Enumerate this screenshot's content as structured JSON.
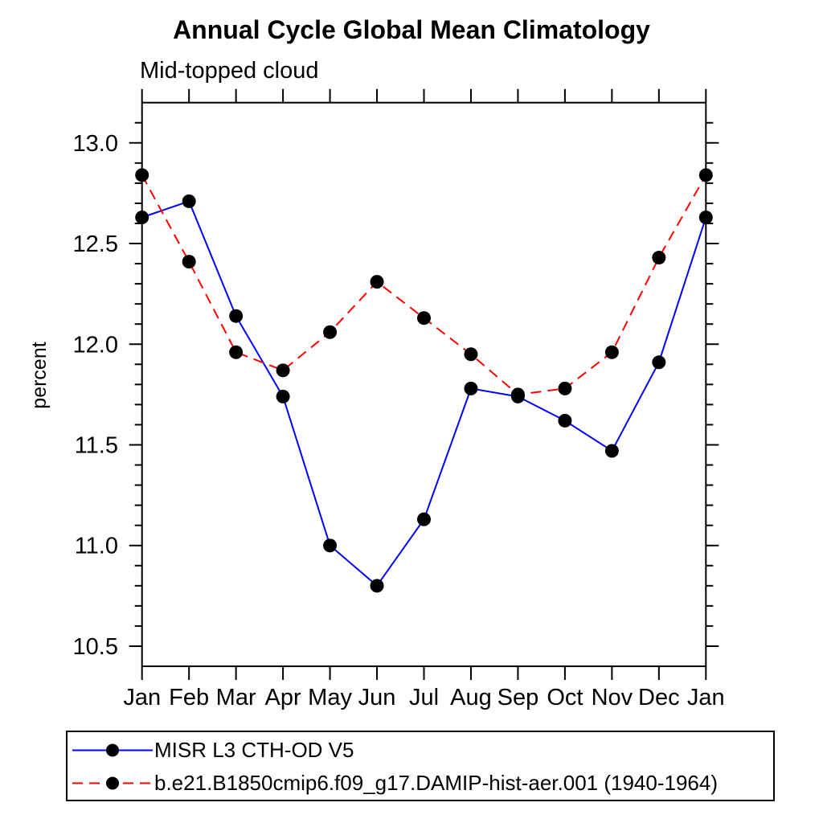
{
  "chart_data": {
    "type": "line",
    "title": "Annual Cycle Global Mean Climatology",
    "subtitle": "Mid-topped cloud",
    "ylabel": "percent",
    "xlabel": "",
    "categories": [
      "Jan",
      "Feb",
      "Mar",
      "Apr",
      "May",
      "Jun",
      "Jul",
      "Aug",
      "Sep",
      "Oct",
      "Nov",
      "Dec",
      "Jan"
    ],
    "ylim": [
      10.4,
      13.2
    ],
    "yticks_major": [
      10.5,
      11.0,
      11.5,
      12.0,
      12.5,
      13.0
    ],
    "ytick_minor_step": 0.1,
    "grid": false,
    "legend_position": "bottom-left-box",
    "marker": "filled-circle",
    "marker_color": "#000000",
    "axis_color": "#000000",
    "series": [
      {
        "name": "MISR L3 CTH-OD V5",
        "color": "#0000ff",
        "style": "solid",
        "values": [
          12.63,
          12.71,
          12.14,
          11.74,
          11.0,
          10.8,
          11.13,
          11.78,
          11.74,
          11.62,
          11.47,
          11.91,
          12.63
        ]
      },
      {
        "name": "b.e21.B1850cmip6.f09_g17.DAMIP-hist-aer.001 (1940-1964)",
        "color": "#ff0000",
        "style": "dashed",
        "values": [
          12.84,
          12.41,
          11.96,
          11.87,
          12.06,
          12.31,
          12.13,
          11.95,
          11.75,
          11.78,
          11.96,
          12.43,
          12.84
        ]
      }
    ]
  }
}
